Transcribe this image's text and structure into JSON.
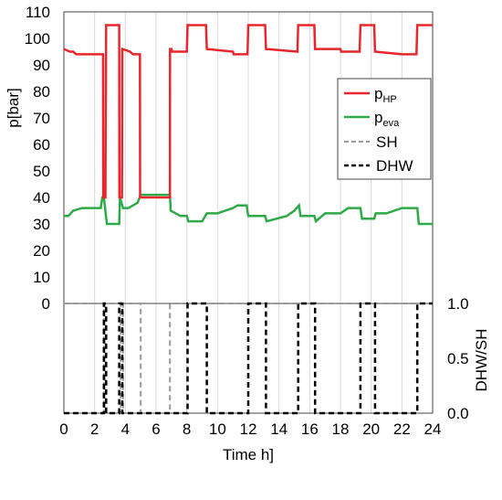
{
  "chart_data": [
    {
      "type": "line",
      "panel": "top",
      "xlabel": "",
      "ylabel": "p[bar]",
      "xlim": [
        0,
        24
      ],
      "ylim": [
        0,
        110
      ],
      "y_ticks": [
        0,
        10,
        20,
        30,
        40,
        50,
        60,
        70,
        80,
        90,
        100,
        110
      ],
      "grid": "vertical",
      "legend": {
        "placement": "right",
        "entries": [
          {
            "key": "p_hp",
            "text": "p",
            "sub": "HP"
          },
          {
            "key": "p_eva",
            "text": "p",
            "sub": "eva"
          },
          {
            "key": "sh",
            "text": "SH"
          },
          {
            "key": "dhw",
            "text": "DHW"
          }
        ]
      },
      "series": [
        {
          "name": "pHP",
          "color": "#e8262b",
          "x": [
            0,
            0.4,
            0.6,
            0.8,
            2.55,
            2.56,
            2.7,
            2.75,
            3.6,
            3.61,
            3.78,
            3.8,
            4.3,
            4.5,
            4.95,
            4.96,
            5.0,
            5.05,
            6.9,
            6.91,
            7.0,
            7.05,
            8.0,
            8.05,
            9.25,
            9.3,
            11.0,
            11.05,
            11.95,
            12.0,
            13.1,
            13.15,
            15.2,
            15.25,
            16.3,
            16.35,
            18.0,
            18.05,
            19.25,
            19.3,
            20.2,
            20.25,
            22.0,
            22.05,
            22.95,
            23.0,
            24.0
          ],
          "y": [
            96,
            95,
            95,
            94,
            94,
            40,
            40,
            105,
            105,
            40,
            40,
            96,
            95,
            94,
            94,
            40,
            40,
            40,
            40,
            96,
            96,
            95,
            95,
            105,
            105,
            96,
            95,
            94,
            94,
            105,
            105,
            96,
            95,
            105,
            105,
            96,
            96,
            95,
            95,
            105,
            105,
            95,
            94,
            94,
            94,
            105,
            105
          ]
        },
        {
          "name": "peva",
          "color": "#2eaa48",
          "x": [
            0,
            0.3,
            0.6,
            1.2,
            2.4,
            2.5,
            2.6,
            2.8,
            3.6,
            3.65,
            3.85,
            4.2,
            4.8,
            5.0,
            6.9,
            6.95,
            7.6,
            8.0,
            8.1,
            9.0,
            9.3,
            10.0,
            11.0,
            11.3,
            11.9,
            12.0,
            13.1,
            13.2,
            14.5,
            15.0,
            15.3,
            15.4,
            16.3,
            16.4,
            17.0,
            18.0,
            18.5,
            19.3,
            19.4,
            20.2,
            20.3,
            21.0,
            22.0,
            23.0,
            23.1,
            24.0
          ],
          "y": [
            33,
            33,
            35,
            36,
            36,
            40,
            40,
            30,
            30,
            40,
            36,
            36,
            38,
            41,
            41,
            35,
            33,
            33,
            31,
            31,
            34,
            34,
            36,
            37,
            37,
            33,
            33,
            31,
            33,
            35,
            37,
            33,
            33,
            31,
            34,
            34,
            36,
            36,
            32,
            32,
            34,
            34,
            36,
            36,
            30,
            30
          ]
        }
      ]
    },
    {
      "type": "line",
      "panel": "bottom",
      "xlabel": "Time h]",
      "ylabel": "DHW/SH",
      "xlim": [
        0,
        24
      ],
      "x_ticks": [
        0,
        2,
        4,
        6,
        8,
        10,
        12,
        14,
        16,
        18,
        20,
        22,
        24
      ],
      "ylim": [
        0.0,
        1.0
      ],
      "y_ticks": [
        "0.0",
        "0.5",
        "1.0"
      ],
      "top_left_label": "0",
      "grid": "vertical",
      "series": [
        {
          "name": "SH",
          "color": "#999999",
          "dash": "dashed",
          "x": [
            0,
            2.6,
            2.6,
            2.65,
            2.65,
            3.7,
            3.7,
            3.85,
            3.85,
            5.0,
            5.0,
            6.9,
            6.9,
            24.0
          ],
          "y": [
            1,
            1,
            0,
            0,
            1,
            1,
            0,
            0,
            1,
            1,
            0,
            0,
            1,
            1
          ]
        },
        {
          "name": "DHW",
          "color": "#000000",
          "dash": "dashed",
          "x": [
            0,
            2.6,
            2.6,
            2.75,
            2.75,
            3.6,
            3.6,
            3.8,
            3.8,
            8.05,
            8.05,
            9.3,
            9.3,
            12.0,
            12.0,
            13.15,
            13.15,
            15.25,
            15.25,
            16.35,
            16.35,
            19.3,
            19.3,
            20.25,
            20.25,
            23.0,
            23.0,
            24.0
          ],
          "y": [
            0,
            0,
            1,
            1,
            0,
            0,
            1,
            1,
            0,
            0,
            1,
            1,
            0,
            0,
            1,
            1,
            0,
            0,
            1,
            1,
            0,
            0,
            1,
            1,
            0,
            0,
            1,
            1
          ]
        }
      ]
    }
  ]
}
